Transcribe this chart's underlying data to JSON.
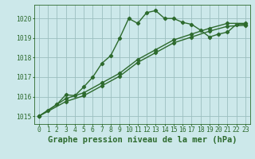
{
  "title": "Graphe pression niveau de la mer (hPa)",
  "background_color": "#cce8ea",
  "plot_bg_color": "#cce8ea",
  "grid_color": "#9bbfbf",
  "line_color": "#2d6a2d",
  "xlim": [
    -0.5,
    23.5
  ],
  "ylim": [
    1014.6,
    1020.7
  ],
  "xticks": [
    0,
    1,
    2,
    3,
    4,
    5,
    6,
    7,
    8,
    9,
    10,
    11,
    12,
    13,
    14,
    15,
    16,
    17,
    18,
    19,
    20,
    21,
    22,
    23
  ],
  "yticks": [
    1015,
    1016,
    1017,
    1018,
    1019,
    1020
  ],
  "series1_x": [
    0,
    1,
    2,
    3,
    4,
    5,
    6,
    7,
    8,
    9,
    10,
    11,
    12,
    13,
    14,
    15,
    16,
    17,
    18,
    19,
    20,
    21,
    22,
    23
  ],
  "series1_y": [
    1015.0,
    1015.3,
    1015.6,
    1016.1,
    1016.05,
    1016.5,
    1017.0,
    1017.7,
    1018.1,
    1019.0,
    1020.0,
    1019.75,
    1020.3,
    1020.4,
    1020.0,
    1020.0,
    1019.8,
    1019.7,
    1019.4,
    1019.05,
    1019.2,
    1019.3,
    1019.7,
    1019.7
  ],
  "series2_x": [
    0,
    3,
    5,
    7,
    9,
    11,
    13,
    15,
    17,
    19,
    21,
    23
  ],
  "series2_y": [
    1015.0,
    1015.9,
    1016.2,
    1016.7,
    1017.2,
    1017.9,
    1018.4,
    1018.9,
    1019.2,
    1019.5,
    1019.75,
    1019.75
  ],
  "series3_x": [
    0,
    3,
    5,
    7,
    9,
    11,
    13,
    15,
    17,
    19,
    21,
    23
  ],
  "series3_y": [
    1015.0,
    1015.75,
    1016.05,
    1016.55,
    1017.05,
    1017.75,
    1018.25,
    1018.75,
    1019.05,
    1019.35,
    1019.6,
    1019.65
  ],
  "title_fontsize": 7.5,
  "tick_fontsize": 5.8,
  "linewidth": 1.0,
  "marker": "D",
  "markersize": 2.2
}
